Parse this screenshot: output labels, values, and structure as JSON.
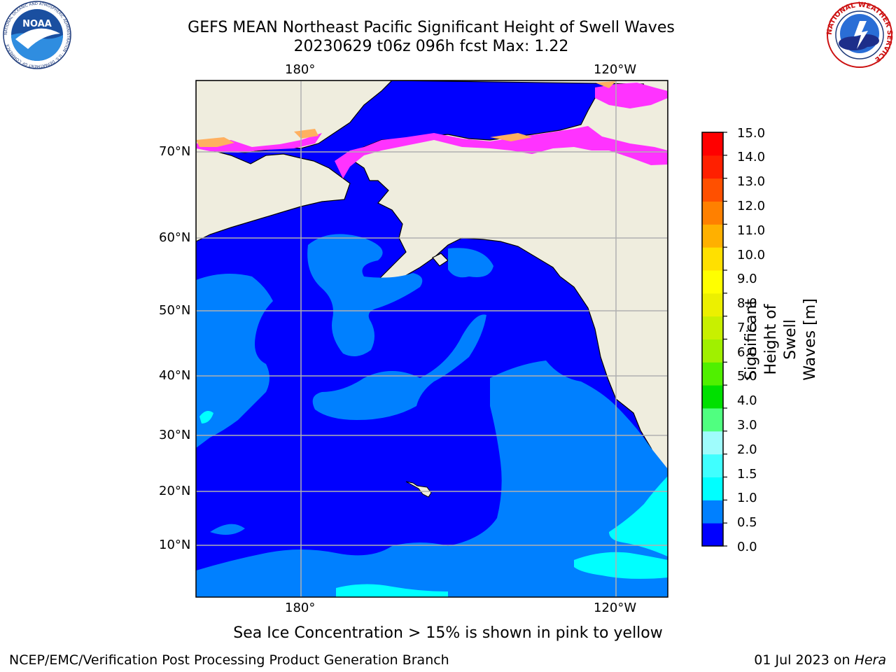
{
  "title": {
    "line1": "GEFS MEAN Northeast Pacific Significant Height of Swell Waves",
    "line2": "20230629 t06z 096h fcst   Max: 1.22"
  },
  "logos": {
    "noaa_text": "NOAA",
    "noaa_ring": "NATIONAL OCEANIC AND ATMOSPHERIC ADMINISTRATION · U.S. DEPARTMENT OF COMMERCE",
    "nws_ring": "NATIONAL WEATHER SERVICE"
  },
  "map": {
    "lon_top": [
      "180°",
      "120°W"
    ],
    "lon_bottom": [
      "180°",
      "120°W"
    ],
    "lat_labels": [
      "70°N",
      "60°N",
      "50°N",
      "40°N",
      "30°N",
      "20°N",
      "10°N"
    ],
    "colors": {
      "land": "#efedde",
      "deep": "#0000ff",
      "mid": "#0080ff",
      "light": "#00ffff",
      "ice_pink": "#ff33ff",
      "ice_orange": "#ffb060",
      "grid": "#b0b0b0"
    }
  },
  "colorbar": {
    "label_line1": "Significant Height of Swell",
    "label_line2": "Waves [m]",
    "ticks": [
      "15.0",
      "14.0",
      "13.0",
      "12.0",
      "11.0",
      "10.0",
      "9.0",
      "8.0",
      "7.0",
      "6.0",
      "5.0",
      "4.0",
      "3.0",
      "2.0",
      "1.5",
      "1.0",
      "0.5",
      "0.0"
    ],
    "colors": [
      "#0000ff",
      "#0080ff",
      "#00ffff",
      "#40ffff",
      "#9ffcfc",
      "#50ff80",
      "#00e000",
      "#50f000",
      "#a0f000",
      "#c8f000",
      "#ecf000",
      "#ffff00",
      "#ffe000",
      "#ffb000",
      "#ff8000",
      "#ff5000",
      "#ff2000",
      "#ff0000"
    ]
  },
  "footer": {
    "ice_note": "Sea Ice Concentration > 15% is shown in pink to yellow",
    "branch": "NCEP/EMC/Verification Post Processing Product Generation Branch",
    "date": "01 Jul 2023 on ",
    "host": "Hera"
  }
}
